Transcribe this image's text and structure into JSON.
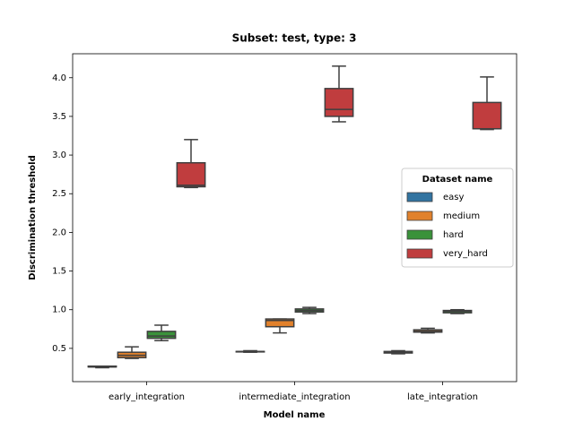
{
  "chart_data": {
    "type": "box",
    "title": "Subset: test, type: 3",
    "xlabel": "Model name",
    "ylabel": "Discrimination threshold",
    "categories": [
      "early_integration",
      "intermediate_integration",
      "late_integration"
    ],
    "series": [
      {
        "name": "easy",
        "color": "#3274a1",
        "values": [
          {
            "min": 0.25,
            "q1": 0.26,
            "median": 0.26,
            "q3": 0.27,
            "max": 0.27
          },
          {
            "min": 0.45,
            "q1": 0.46,
            "median": 0.46,
            "q3": 0.46,
            "max": 0.47
          },
          {
            "min": 0.43,
            "q1": 0.44,
            "median": 0.45,
            "q3": 0.46,
            "max": 0.47
          }
        ]
      },
      {
        "name": "medium",
        "color": "#e1812c",
        "values": [
          {
            "min": 0.37,
            "q1": 0.38,
            "median": 0.41,
            "q3": 0.45,
            "max": 0.52
          },
          {
            "min": 0.7,
            "q1": 0.78,
            "median": 0.86,
            "q3": 0.88,
            "max": 0.88
          },
          {
            "min": 0.7,
            "q1": 0.71,
            "median": 0.72,
            "q3": 0.74,
            "max": 0.76
          }
        ]
      },
      {
        "name": "hard",
        "color": "#3a923a",
        "values": [
          {
            "min": 0.6,
            "q1": 0.63,
            "median": 0.66,
            "q3": 0.72,
            "max": 0.8
          },
          {
            "min": 0.95,
            "q1": 0.97,
            "median": 0.99,
            "q3": 1.01,
            "max": 1.03
          },
          {
            "min": 0.95,
            "q1": 0.96,
            "median": 0.98,
            "q3": 0.99,
            "max": 1.0
          }
        ]
      },
      {
        "name": "very_hard",
        "color": "#c03d3e",
        "values": [
          {
            "min": 2.58,
            "q1": 2.59,
            "median": 2.61,
            "q3": 2.9,
            "max": 3.2
          },
          {
            "min": 3.43,
            "q1": 3.5,
            "median": 3.59,
            "q3": 3.86,
            "max": 4.15
          },
          {
            "min": 3.33,
            "q1": 3.34,
            "median": 3.34,
            "q3": 3.68,
            "max": 4.01
          }
        ]
      }
    ],
    "ylim": [
      0.07,
      4.31
    ],
    "yticks": [
      0.5,
      {
        "value": 1.0,
        "label": "1.0"
      },
      1.5,
      {
        "value": 2.0,
        "label": "2.0"
      },
      2.5,
      {
        "value": 3.0,
        "label": "3.0"
      },
      3.5,
      {
        "value": 4.0,
        "label": "4.0"
      }
    ],
    "legend": {
      "title": "Dataset name",
      "position": "center right"
    },
    "line_color": "#3f3f3f"
  }
}
